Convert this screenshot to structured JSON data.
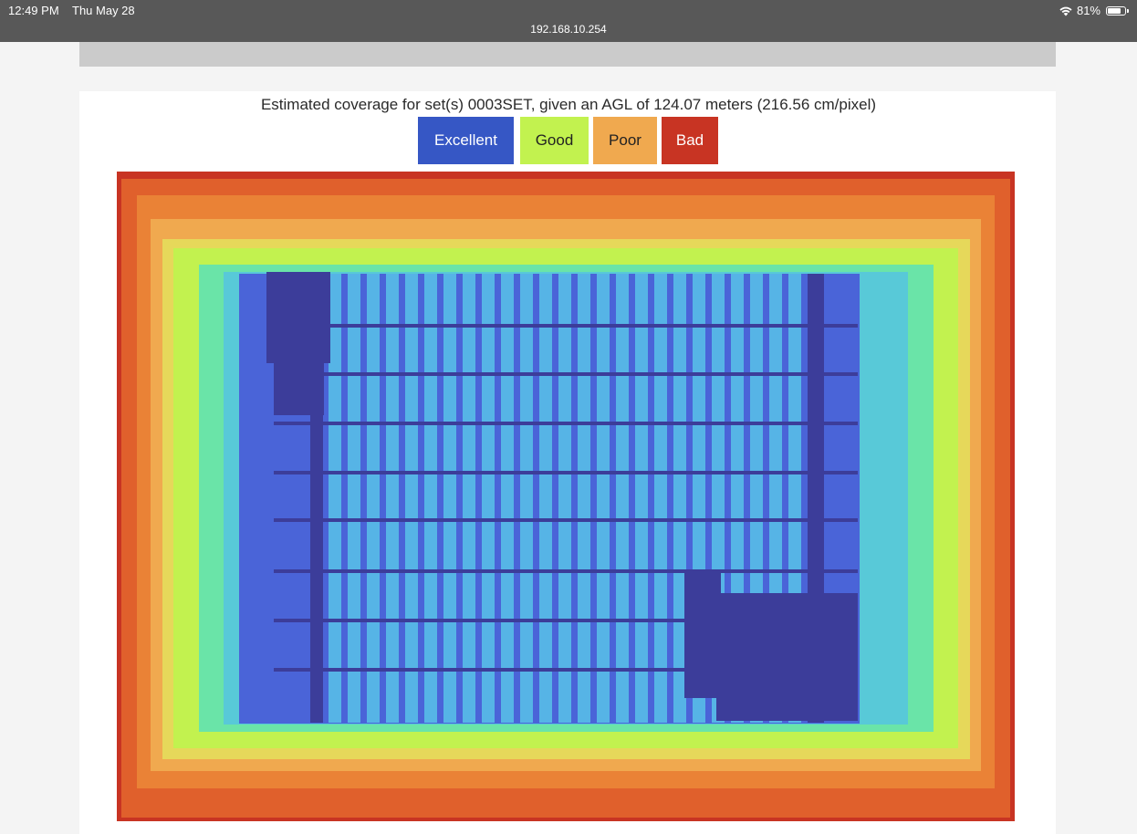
{
  "status_bar": {
    "time": "12:49 PM",
    "date": "Thu May 28",
    "battery": "81%",
    "battery_level": 0.81,
    "icons": [
      "wifi-icon",
      "battery-icon"
    ]
  },
  "browser": {
    "url": "192.168.10.254"
  },
  "coverage": {
    "caption": "Estimated coverage for set(s) 0003SET, given an AGL of 124.07 meters (216.56 cm/pixel)",
    "legend": [
      {
        "label": "Excellent",
        "color": "#3657c5",
        "text_color": "#ffffff"
      },
      {
        "label": "Good",
        "color": "#c2f24f",
        "text_color": "#222222"
      },
      {
        "label": "Poor",
        "color": "#f0a94f",
        "text_color": "#222222"
      },
      {
        "label": "Bad",
        "color": "#c83423",
        "text_color": "#ffffff"
      }
    ]
  },
  "chart_data": {
    "type": "heatmap",
    "levels": [
      "Excellent",
      "Good",
      "Poor",
      "Bad"
    ],
    "palette": {
      "deep": "#3c3d9a",
      "excellent": "#4a64d8",
      "light_excellent": "#56b4e6",
      "cyan": "#58c9d8",
      "aqua": "#6ae4a8",
      "good": "#c2f24f",
      "yellow": "#e6d85a",
      "poor": "#f0a94f",
      "orange": "#ea8236",
      "dark_orange": "#e0602c",
      "bad": "#c83423"
    }
  }
}
